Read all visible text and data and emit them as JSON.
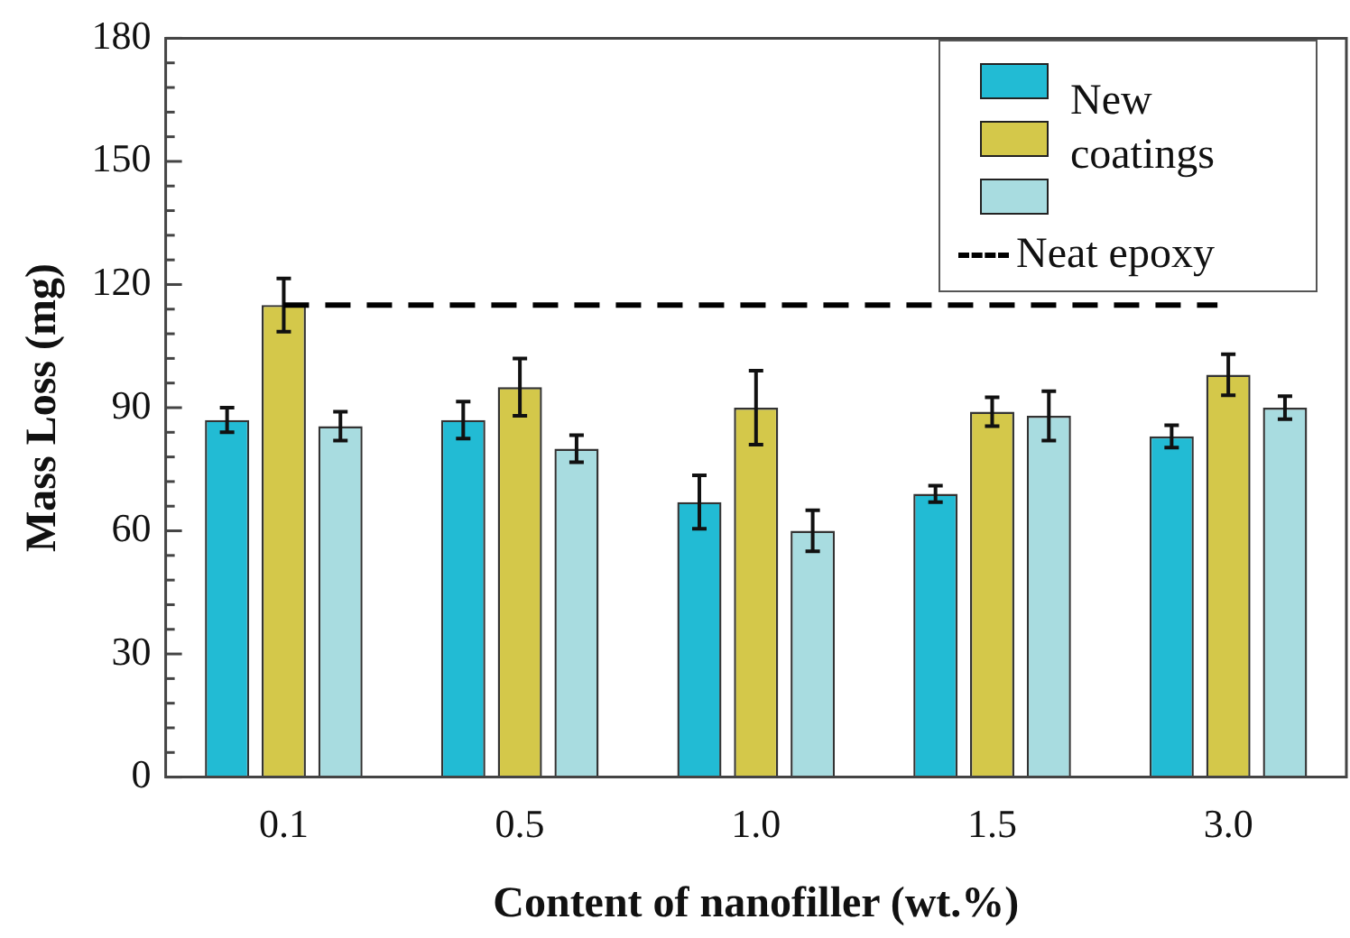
{
  "chart_data": {
    "type": "bar",
    "xlabel": "Content of nanofiller (wt.%)",
    "ylabel": "Mass Loss (mg)",
    "categories": [
      "0.1",
      "0.5",
      "1.0",
      "1.5",
      "3.0"
    ],
    "series": [
      {
        "color": "#22bbd4",
        "values": [
          87,
          87,
          67,
          69,
          83
        ],
        "errors": [
          3,
          4.5,
          6.5,
          2,
          2.7
        ]
      },
      {
        "color": "#d4c84a",
        "values": [
          115,
          95,
          90,
          89,
          98
        ],
        "errors": [
          6.5,
          7,
          9,
          3.5,
          5
        ]
      },
      {
        "color": "#a8dce0",
        "values": [
          85.5,
          80,
          60,
          88,
          90
        ],
        "errors": [
          3.5,
          3.3,
          5,
          6,
          2.8
        ]
      }
    ],
    "ylim": [
      0,
      180
    ],
    "yticks": [
      0,
      30,
      60,
      90,
      120,
      150,
      180
    ],
    "grid": false,
    "legend": "top right",
    "legend_title": "New coatings",
    "ref_lines": [
      {
        "axis": "y",
        "value": 115,
        "label": "Neat epoxy",
        "line_style": "dashed",
        "color": "#000000"
      }
    ]
  }
}
